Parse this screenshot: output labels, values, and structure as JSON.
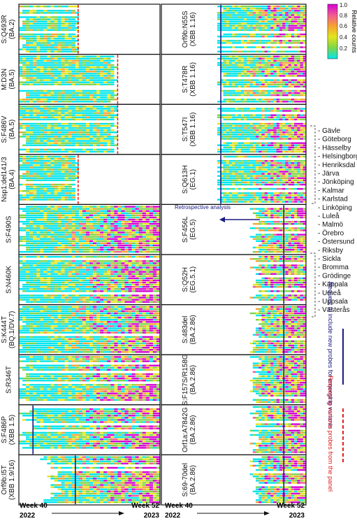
{
  "chart_data": {
    "type": "heatmap",
    "grid": false,
    "colorbar": {
      "label": "Relative counts",
      "ticks": [
        "1.0",
        "0.8",
        "0.6",
        "0.4",
        "0.2"
      ],
      "colors": [
        "#00e5ee",
        "#7cd64a",
        "#e3e51c",
        "#f6a233",
        "#f15a92",
        "#d400d4"
      ],
      "placement": "top-right"
    },
    "x_axis": {
      "start_label": [
        "Week 40",
        "2022"
      ],
      "end_label": [
        "Week 52",
        "2023"
      ]
    },
    "sites": [
      "Gävle",
      "Göteborg",
      "Hässelby",
      "Helsingborg",
      "Henriksdal",
      "Järva",
      "Jönköping",
      "Kalmar",
      "Karlstad",
      "Linköping",
      "Luleå",
      "Malmö",
      "Örebro",
      "Östersund",
      "Riksby",
      "Sickla",
      "Bromma",
      "Grödinge",
      "Käppala",
      "Umeå",
      "Uppsala",
      "Västerås"
    ],
    "annotation": "Retrospective analysis",
    "legend": {
      "include": "Request to include new probes for emerging variants",
      "remove": "Request to remove probes from the panel",
      "include_color": "#1a1a80",
      "remove_color": "#e02020"
    },
    "panels": [
      {
        "id": "p1",
        "label": [
          "S:Q493R",
          "(BA.2)"
        ],
        "column": 0,
        "row": 0,
        "marker": "remove",
        "marker_week": 0.42
      },
      {
        "id": "p2",
        "label": [
          "M:D3N",
          "(BA.5)"
        ],
        "column": 0,
        "row": 1,
        "marker": "remove",
        "marker_week": 0.7
      },
      {
        "id": "p3",
        "label": [
          "S:F486V",
          "(BA.5)"
        ],
        "column": 0,
        "row": 2,
        "marker": "remove",
        "marker_week": 0.7
      },
      {
        "id": "p4",
        "label": [
          "Nsp1:del141/3",
          "(BA.4)"
        ],
        "column": 0,
        "row": 3,
        "marker": "remove",
        "marker_week": 0.42
      },
      {
        "id": "p5",
        "label": [
          "S:F490S"
        ],
        "column": 0,
        "row": 4,
        "marker": "none"
      },
      {
        "id": "p6",
        "label": [
          "S:N460K"
        ],
        "column": 0,
        "row": 5,
        "marker": "none"
      },
      {
        "id": "p7",
        "label": [
          "S:K444T",
          "(BQ.1/DV.7)"
        ],
        "column": 0,
        "row": 6,
        "marker": "none"
      },
      {
        "id": "p8",
        "label": [
          "S:R346T"
        ],
        "column": 0,
        "row": 7,
        "marker": "none"
      },
      {
        "id": "p9",
        "label": [
          "S:F486P",
          "(XBB 1.5)"
        ],
        "column": 0,
        "row": 8,
        "marker": "include",
        "marker_week": 0.1
      },
      {
        "id": "p10",
        "label": [
          "Orf9b:I5T",
          "(XBB 1.9/16)"
        ],
        "column": 0,
        "row": 9,
        "marker": "include",
        "marker_week": 0.4
      },
      {
        "id": "p11",
        "label": [
          "Orf9b:N55S",
          "(XBB 1.16)"
        ],
        "column": 1,
        "row": 0,
        "marker": "include",
        "marker_week": 0.04
      },
      {
        "id": "p12",
        "label": [
          "S:T478R",
          "(XBB 1.16)"
        ],
        "column": 1,
        "row": 1,
        "marker": "include",
        "marker_week": 0.04
      },
      {
        "id": "p13",
        "label": [
          "S:T547I",
          "(XBB 1.16)"
        ],
        "column": 1,
        "row": 2,
        "marker": "include",
        "marker_week": 0.04
      },
      {
        "id": "p14",
        "label": [
          "S:Q613H",
          "(EG.1)"
        ],
        "column": 1,
        "row": 3,
        "marker": "include",
        "marker_week": 0.04
      },
      {
        "id": "p15",
        "label": [
          "S:F456L",
          "(EG.5)"
        ],
        "column": 1,
        "row": 4,
        "marker": "include",
        "marker_week": 0.75
      },
      {
        "id": "p16",
        "label": [
          "S:Q52H",
          "(EG.5.1)"
        ],
        "column": 1,
        "row": 5,
        "marker": "include",
        "marker_week": 0.75
      },
      {
        "id": "p17",
        "label": [
          "S:483del",
          "(BA.2.86)"
        ],
        "column": 1,
        "row": 6,
        "marker": "include",
        "marker_week": 0.75
      },
      {
        "id": "p18",
        "label": [
          "S:F157S/R158G",
          "(BA.2.86)"
        ],
        "column": 1,
        "row": 7,
        "marker": "include",
        "marker_week": 0.75
      },
      {
        "id": "p19",
        "label": [
          "Orf1a:A7842G",
          "(BA.2.86)"
        ],
        "column": 1,
        "row": 8,
        "marker": "include",
        "marker_week": 0.75
      },
      {
        "id": "p20",
        "label": [
          "S:69-70del",
          "(BA.2.86)"
        ],
        "column": 1,
        "row": 9,
        "marker": "include",
        "marker_week": 0.75
      }
    ]
  }
}
